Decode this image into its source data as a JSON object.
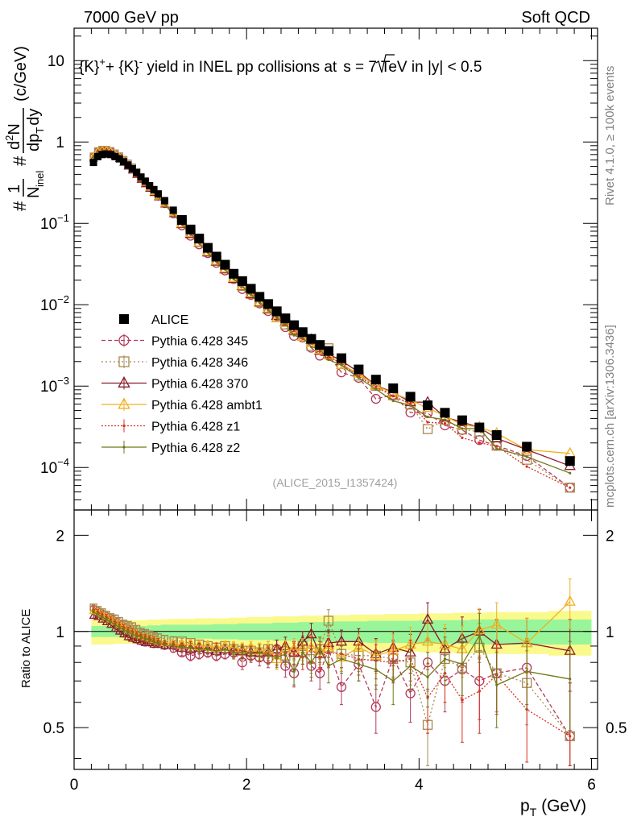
{
  "header": {
    "left": "7000 GeV pp",
    "right": "Soft QCD"
  },
  "title_parts": {
    "a": "{K}",
    "a_sup": "+",
    "b": "+ {K}",
    "b_sup": "-",
    "c": " yield in INEL pp collisions at",
    "sqrt": "s",
    "d": " =  7 TeV in |y| < 0.5"
  },
  "side_labels": {
    "rivet": "Rivet 4.1.0, ≥ 100k events",
    "mcplots": "mcplots.cern.ch [arXiv:1306.3436]"
  },
  "watermark": "(ALICE_2015_I1357424)",
  "top_ylabel": {
    "hash1": "#",
    "one": "1",
    "N": "N",
    "N_sub": "inel",
    "hash2": "#",
    "d2N": "d",
    "d2N_sup": "2",
    "d2N_tail": "N",
    "dp": "dp",
    "dp_sub": "T",
    "dy": "dy",
    "unit": "(c/GeV)"
  },
  "bottom_ylabel": "Ratio to ALICE",
  "xlabel": {
    "p": "p",
    "sub": "T",
    "unit": " (GeV)"
  },
  "top_yticks": [
    {
      "value": 10,
      "mant": "10",
      "exp": ""
    },
    {
      "value": 1,
      "mant": "1",
      "exp": ""
    },
    {
      "value": 0.1,
      "mant": "10",
      "exp": "−1"
    },
    {
      "value": 0.01,
      "mant": "10",
      "exp": "−2"
    },
    {
      "value": 0.001,
      "mant": "10",
      "exp": "−3"
    },
    {
      "value": 0.0001,
      "mant": "10",
      "exp": "−4"
    }
  ],
  "ratio_yticks": [
    "2",
    "1",
    "0.5"
  ],
  "ratio_yticks_right": [
    "2",
    "1",
    "0.5"
  ],
  "xticks": [
    "0",
    "2",
    "4",
    "6"
  ],
  "legend": [
    {
      "label": "ALICE"
    },
    {
      "label": "Pythia 6.428 345"
    },
    {
      "label": "Pythia 6.428 346"
    },
    {
      "label": "Pythia 6.428 370"
    },
    {
      "label": "Pythia 6.428 ambt1"
    },
    {
      "label": "Pythia 6.428 z1"
    },
    {
      "label": "Pythia 6.428 z2"
    }
  ],
  "colors": {
    "alice": "#000000",
    "p345": "#b33a5a",
    "p346": "#a88850",
    "p370": "#8b1a2a",
    "ambt1": "#f0b020",
    "z1": "#d83020",
    "z2": "#707818",
    "band_inner": "#99f599",
    "band_outer": "#fafa8c"
  },
  "chart_data": {
    "type": "scatter",
    "title": "{K}+ + {K}- yield in INEL pp collisions at sqrt(s) = 7 TeV in |y| < 0.5",
    "xlabel": "p_T (GeV)",
    "ylabel": "1/N_inel d2N/dp_T dy (c/GeV)",
    "ratio_ylabel": "Ratio to ALICE",
    "xlim": [
      0,
      6.07
    ],
    "ylim": [
      3e-05,
      25
    ],
    "ylog": true,
    "ratio_ylim": [
      0.37,
      2.4
    ],
    "ratio_ylog": true,
    "x": [
      0.225,
      0.275,
      0.325,
      0.375,
      0.425,
      0.475,
      0.525,
      0.575,
      0.625,
      0.675,
      0.725,
      0.775,
      0.825,
      0.875,
      0.925,
      0.975,
      1.05,
      1.15,
      1.25,
      1.35,
      1.45,
      1.55,
      1.65,
      1.75,
      1.85,
      1.95,
      2.05,
      2.15,
      2.25,
      2.35,
      2.45,
      2.55,
      2.65,
      2.75,
      2.85,
      2.95,
      3.1,
      3.3,
      3.5,
      3.7,
      3.9,
      4.1,
      4.3,
      4.5,
      4.7,
      4.9,
      5.25,
      5.75
    ],
    "alice": [
      0.56,
      0.66,
      0.7,
      0.71,
      0.7,
      0.66,
      0.62,
      0.57,
      0.52,
      0.47,
      0.42,
      0.37,
      0.33,
      0.29,
      0.26,
      0.23,
      0.19,
      0.145,
      0.11,
      0.084,
      0.065,
      0.05,
      0.039,
      0.031,
      0.024,
      0.0195,
      0.0157,
      0.0125,
      0.0102,
      0.0083,
      0.0068,
      0.0056,
      0.0046,
      0.0038,
      0.0032,
      0.0027,
      0.0022,
      0.0016,
      0.0012,
      0.00094,
      0.00074,
      0.00058,
      0.00047,
      0.00038,
      0.00031,
      0.00025,
      0.00018,
      0.00012
    ],
    "band_inner_halfwidth": [
      0.04,
      0.04,
      0.04,
      0.04,
      0.04,
      0.04,
      0.04,
      0.04,
      0.04,
      0.04,
      0.04,
      0.04,
      0.04,
      0.045,
      0.045,
      0.045,
      0.05,
      0.05,
      0.05,
      0.05,
      0.05,
      0.05,
      0.055,
      0.055,
      0.055,
      0.06,
      0.06,
      0.06,
      0.06,
      0.065,
      0.065,
      0.065,
      0.07,
      0.07,
      0.07,
      0.07,
      0.075,
      0.075,
      0.08,
      0.08,
      0.08,
      0.085,
      0.085,
      0.085,
      0.09,
      0.09,
      0.09,
      0.09
    ],
    "band_outer_halfwidth": [
      0.09,
      0.09,
      0.09,
      0.09,
      0.09,
      0.085,
      0.085,
      0.085,
      0.085,
      0.085,
      0.085,
      0.085,
      0.085,
      0.09,
      0.09,
      0.09,
      0.09,
      0.095,
      0.095,
      0.095,
      0.1,
      0.1,
      0.1,
      0.1,
      0.105,
      0.105,
      0.11,
      0.11,
      0.11,
      0.115,
      0.115,
      0.115,
      0.12,
      0.12,
      0.12,
      0.125,
      0.125,
      0.13,
      0.13,
      0.135,
      0.135,
      0.14,
      0.14,
      0.145,
      0.145,
      0.15,
      0.15,
      0.16
    ],
    "series": [
      {
        "name": "Pythia 6.428 345",
        "key": "p345",
        "marker": "circle",
        "dash": "5,3",
        "ratio": [
          1.18,
          1.16,
          1.14,
          1.12,
          1.1,
          1.08,
          1.06,
          1.04,
          1.02,
          1.0,
          0.98,
          0.96,
          0.95,
          0.94,
          0.93,
          0.92,
          0.9,
          0.88,
          0.86,
          0.84,
          0.85,
          0.86,
          0.84,
          0.85,
          0.86,
          0.8,
          0.84,
          0.83,
          0.82,
          0.88,
          0.78,
          0.74,
          0.86,
          0.78,
          0.74,
          0.88,
          0.67,
          0.79,
          0.58,
          0.83,
          0.64,
          0.8,
          0.7,
          0.76,
          0.7,
          0.74,
          0.77,
          0.47
        ],
        "err": [
          0.02,
          0.02,
          0.02,
          0.02,
          0.02,
          0.02,
          0.02,
          0.02,
          0.02,
          0.02,
          0.02,
          0.02,
          0.02,
          0.02,
          0.02,
          0.02,
          0.02,
          0.02,
          0.02,
          0.03,
          0.03,
          0.03,
          0.03,
          0.03,
          0.04,
          0.04,
          0.04,
          0.05,
          0.05,
          0.06,
          0.06,
          0.07,
          0.07,
          0.08,
          0.08,
          0.09,
          0.08,
          0.09,
          0.1,
          0.11,
          0.12,
          0.14,
          0.14,
          0.16,
          0.17,
          0.18,
          0.18,
          0.22
        ]
      },
      {
        "name": "Pythia 6.428 346",
        "key": "p346",
        "marker": "square",
        "dash": "2,3",
        "ratio": [
          1.19,
          1.17,
          1.15,
          1.13,
          1.11,
          1.1,
          1.08,
          1.06,
          1.05,
          1.04,
          1.02,
          1.0,
          0.99,
          0.98,
          0.97,
          0.96,
          0.95,
          0.94,
          0.93,
          0.92,
          0.91,
          0.9,
          0.89,
          0.9,
          0.88,
          0.87,
          0.87,
          0.86,
          0.88,
          0.85,
          0.84,
          0.86,
          0.9,
          0.82,
          0.88,
          1.08,
          0.85,
          0.84,
          0.84,
          0.82,
          0.8,
          0.51,
          0.82,
          0.77,
          0.89,
          0.74,
          0.69,
          0.47
        ],
        "err": [
          0.02,
          0.02,
          0.02,
          0.02,
          0.02,
          0.02,
          0.02,
          0.02,
          0.02,
          0.02,
          0.02,
          0.02,
          0.02,
          0.02,
          0.02,
          0.02,
          0.02,
          0.02,
          0.02,
          0.03,
          0.03,
          0.03,
          0.03,
          0.03,
          0.04,
          0.04,
          0.04,
          0.05,
          0.05,
          0.06,
          0.06,
          0.07,
          0.07,
          0.08,
          0.08,
          0.09,
          0.08,
          0.09,
          0.1,
          0.11,
          0.12,
          0.14,
          0.14,
          0.16,
          0.17,
          0.18,
          0.18,
          0.22
        ]
      },
      {
        "name": "Pythia 6.428 370",
        "key": "p370",
        "marker": "triangle",
        "dash": "",
        "ratio": [
          1.12,
          1.11,
          1.09,
          1.07,
          1.05,
          1.02,
          1.0,
          0.98,
          0.96,
          0.95,
          0.94,
          0.93,
          0.92,
          0.92,
          0.91,
          0.91,
          0.9,
          0.9,
          0.89,
          0.88,
          0.89,
          0.88,
          0.87,
          0.88,
          0.87,
          0.87,
          0.86,
          0.86,
          0.86,
          0.88,
          0.9,
          0.86,
          0.93,
          0.98,
          0.85,
          0.92,
          0.93,
          0.93,
          0.85,
          0.89,
          0.86,
          1.09,
          0.88,
          0.95,
          1.0,
          0.91,
          0.92,
          0.87
        ],
        "err": [
          0.02,
          0.02,
          0.02,
          0.02,
          0.02,
          0.02,
          0.02,
          0.02,
          0.02,
          0.02,
          0.02,
          0.02,
          0.02,
          0.02,
          0.02,
          0.02,
          0.02,
          0.02,
          0.02,
          0.03,
          0.03,
          0.03,
          0.03,
          0.03,
          0.04,
          0.04,
          0.04,
          0.05,
          0.05,
          0.06,
          0.06,
          0.07,
          0.07,
          0.08,
          0.08,
          0.09,
          0.08,
          0.09,
          0.1,
          0.11,
          0.12,
          0.14,
          0.14,
          0.16,
          0.17,
          0.18,
          0.18,
          0.22
        ]
      },
      {
        "name": "Pythia 6.428 ambt1",
        "key": "ambt1",
        "marker": "triangle",
        "dash": "",
        "ratio": [
          1.16,
          1.15,
          1.13,
          1.11,
          1.09,
          1.07,
          1.05,
          1.03,
          1.01,
          1.0,
          0.98,
          0.97,
          0.96,
          0.95,
          0.94,
          0.93,
          0.92,
          0.92,
          0.91,
          0.91,
          0.9,
          0.9,
          0.89,
          0.9,
          0.89,
          0.88,
          0.89,
          0.87,
          0.88,
          0.82,
          0.88,
          0.88,
          0.88,
          0.89,
          0.87,
          0.89,
          0.83,
          0.89,
          0.84,
          0.87,
          0.91,
          0.93,
          0.91,
          0.88,
          1.01,
          1.05,
          0.92,
          1.24
        ],
        "err": [
          0.02,
          0.02,
          0.02,
          0.02,
          0.02,
          0.02,
          0.02,
          0.02,
          0.02,
          0.02,
          0.02,
          0.02,
          0.02,
          0.02,
          0.02,
          0.02,
          0.02,
          0.02,
          0.02,
          0.03,
          0.03,
          0.03,
          0.03,
          0.03,
          0.04,
          0.04,
          0.04,
          0.05,
          0.05,
          0.06,
          0.06,
          0.07,
          0.07,
          0.08,
          0.08,
          0.09,
          0.08,
          0.09,
          0.1,
          0.11,
          0.12,
          0.14,
          0.14,
          0.16,
          0.17,
          0.18,
          0.18,
          0.22
        ]
      },
      {
        "name": "Pythia 6.428 z1",
        "key": "z1",
        "marker": "dot",
        "dash": "2,2",
        "ratio": [
          1.17,
          1.15,
          1.13,
          1.11,
          1.09,
          1.07,
          1.05,
          1.03,
          1.01,
          1.0,
          0.98,
          0.97,
          0.96,
          0.95,
          0.94,
          0.93,
          0.92,
          0.91,
          0.9,
          0.9,
          0.89,
          0.88,
          0.89,
          0.88,
          0.87,
          0.87,
          0.86,
          0.86,
          0.85,
          0.84,
          0.86,
          0.85,
          0.83,
          0.88,
          0.83,
          0.86,
          0.85,
          0.82,
          0.81,
          0.8,
          0.82,
          0.62,
          0.74,
          0.61,
          0.65,
          0.73,
          0.57,
          0.47
        ],
        "err": [
          0.02,
          0.02,
          0.02,
          0.02,
          0.02,
          0.02,
          0.02,
          0.02,
          0.02,
          0.02,
          0.02,
          0.02,
          0.02,
          0.02,
          0.02,
          0.02,
          0.02,
          0.02,
          0.02,
          0.03,
          0.03,
          0.03,
          0.03,
          0.03,
          0.04,
          0.04,
          0.04,
          0.05,
          0.05,
          0.06,
          0.06,
          0.07,
          0.07,
          0.08,
          0.08,
          0.09,
          0.08,
          0.09,
          0.1,
          0.11,
          0.12,
          0.14,
          0.14,
          0.16,
          0.17,
          0.18,
          0.18,
          0.22
        ]
      },
      {
        "name": "Pythia 6.428 z2",
        "key": "z2",
        "marker": "dot",
        "dash": "",
        "ratio": [
          1.15,
          1.13,
          1.11,
          1.09,
          1.07,
          1.05,
          1.03,
          1.01,
          1.0,
          0.98,
          0.97,
          0.96,
          0.95,
          0.94,
          0.93,
          0.92,
          0.91,
          0.9,
          0.89,
          0.89,
          0.88,
          0.88,
          0.87,
          0.88,
          0.86,
          0.86,
          0.85,
          0.86,
          0.84,
          0.83,
          0.85,
          0.75,
          0.86,
          0.8,
          0.88,
          0.78,
          0.82,
          0.79,
          0.76,
          0.7,
          0.78,
          0.72,
          0.82,
          0.79,
          0.97,
          0.68,
          0.75,
          0.71
        ],
        "err": [
          0.02,
          0.02,
          0.02,
          0.02,
          0.02,
          0.02,
          0.02,
          0.02,
          0.02,
          0.02,
          0.02,
          0.02,
          0.02,
          0.02,
          0.02,
          0.02,
          0.02,
          0.02,
          0.02,
          0.03,
          0.03,
          0.03,
          0.03,
          0.03,
          0.04,
          0.04,
          0.04,
          0.05,
          0.05,
          0.06,
          0.06,
          0.07,
          0.07,
          0.08,
          0.08,
          0.09,
          0.08,
          0.09,
          0.1,
          0.11,
          0.12,
          0.14,
          0.14,
          0.16,
          0.17,
          0.18,
          0.18,
          0.22
        ]
      }
    ]
  }
}
